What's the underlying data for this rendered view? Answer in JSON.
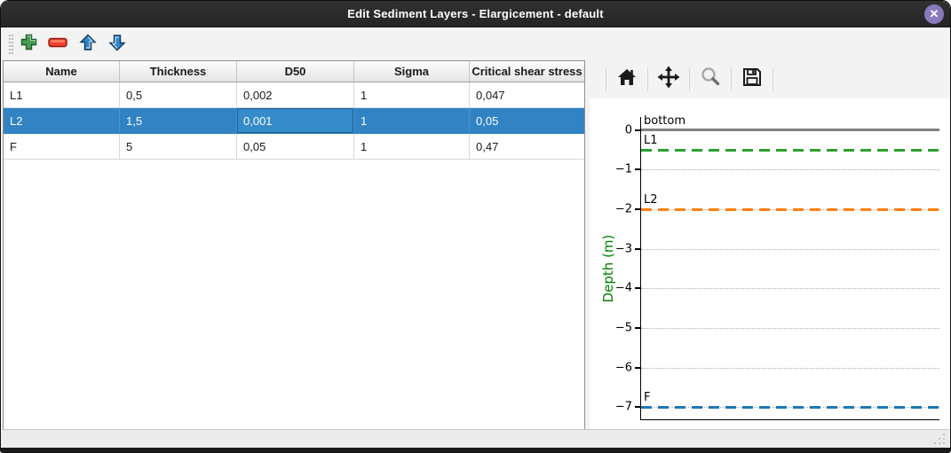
{
  "window": {
    "title": "Edit Sediment Layers - Elargicement - default",
    "close_glyph": "✕"
  },
  "toolbar": {
    "icons": [
      "add",
      "remove",
      "move-up",
      "move-down"
    ],
    "accent_colors": {
      "add": "#4a9e54",
      "remove": "#f1402e",
      "move": "#2f87c8"
    }
  },
  "table": {
    "headers": [
      "Name",
      "Thickness",
      "D50",
      "Sigma",
      "Critical shear stress"
    ],
    "rows": [
      {
        "cells": [
          "L1",
          "0,5",
          "0,002",
          "1",
          "0,047"
        ],
        "selected": false
      },
      {
        "cells": [
          "L2",
          "1,5",
          "0,001",
          "1",
          "0,05"
        ],
        "selected": true
      },
      {
        "cells": [
          "F",
          "5",
          "0,05",
          "1",
          "0,47"
        ],
        "selected": false
      }
    ],
    "focused_cell": {
      "row": 1,
      "col": 2
    },
    "selection_color": "#3183c4"
  },
  "chart_toolbar": {
    "icons": [
      "home",
      "pan",
      "zoom",
      "save"
    ]
  },
  "chart_data": {
    "type": "line",
    "title": "",
    "xlabel": "",
    "ylabel": "Depth (m)",
    "ylabel_color": "#008000",
    "ylim": [
      -7.33,
      0.33
    ],
    "yticks": [
      0,
      -1,
      -2,
      -3,
      -4,
      -5,
      -6,
      -7
    ],
    "ytick_labels": [
      "0",
      "−1",
      "−2",
      "−3",
      "−4",
      "−5",
      "−6",
      "−7"
    ],
    "grid": true,
    "legend_position": "none",
    "series": [
      {
        "name": "bottom",
        "depth": 0,
        "color": "#808080",
        "style": "solid"
      },
      {
        "name": "L1",
        "depth": -0.5,
        "color": "#2ca02c",
        "style": "dashed"
      },
      {
        "name": "L2",
        "depth": -2,
        "color": "#ff7f0e",
        "style": "dashed"
      },
      {
        "name": "F",
        "depth": -7,
        "color": "#1f77b4",
        "style": "dashed"
      }
    ]
  }
}
